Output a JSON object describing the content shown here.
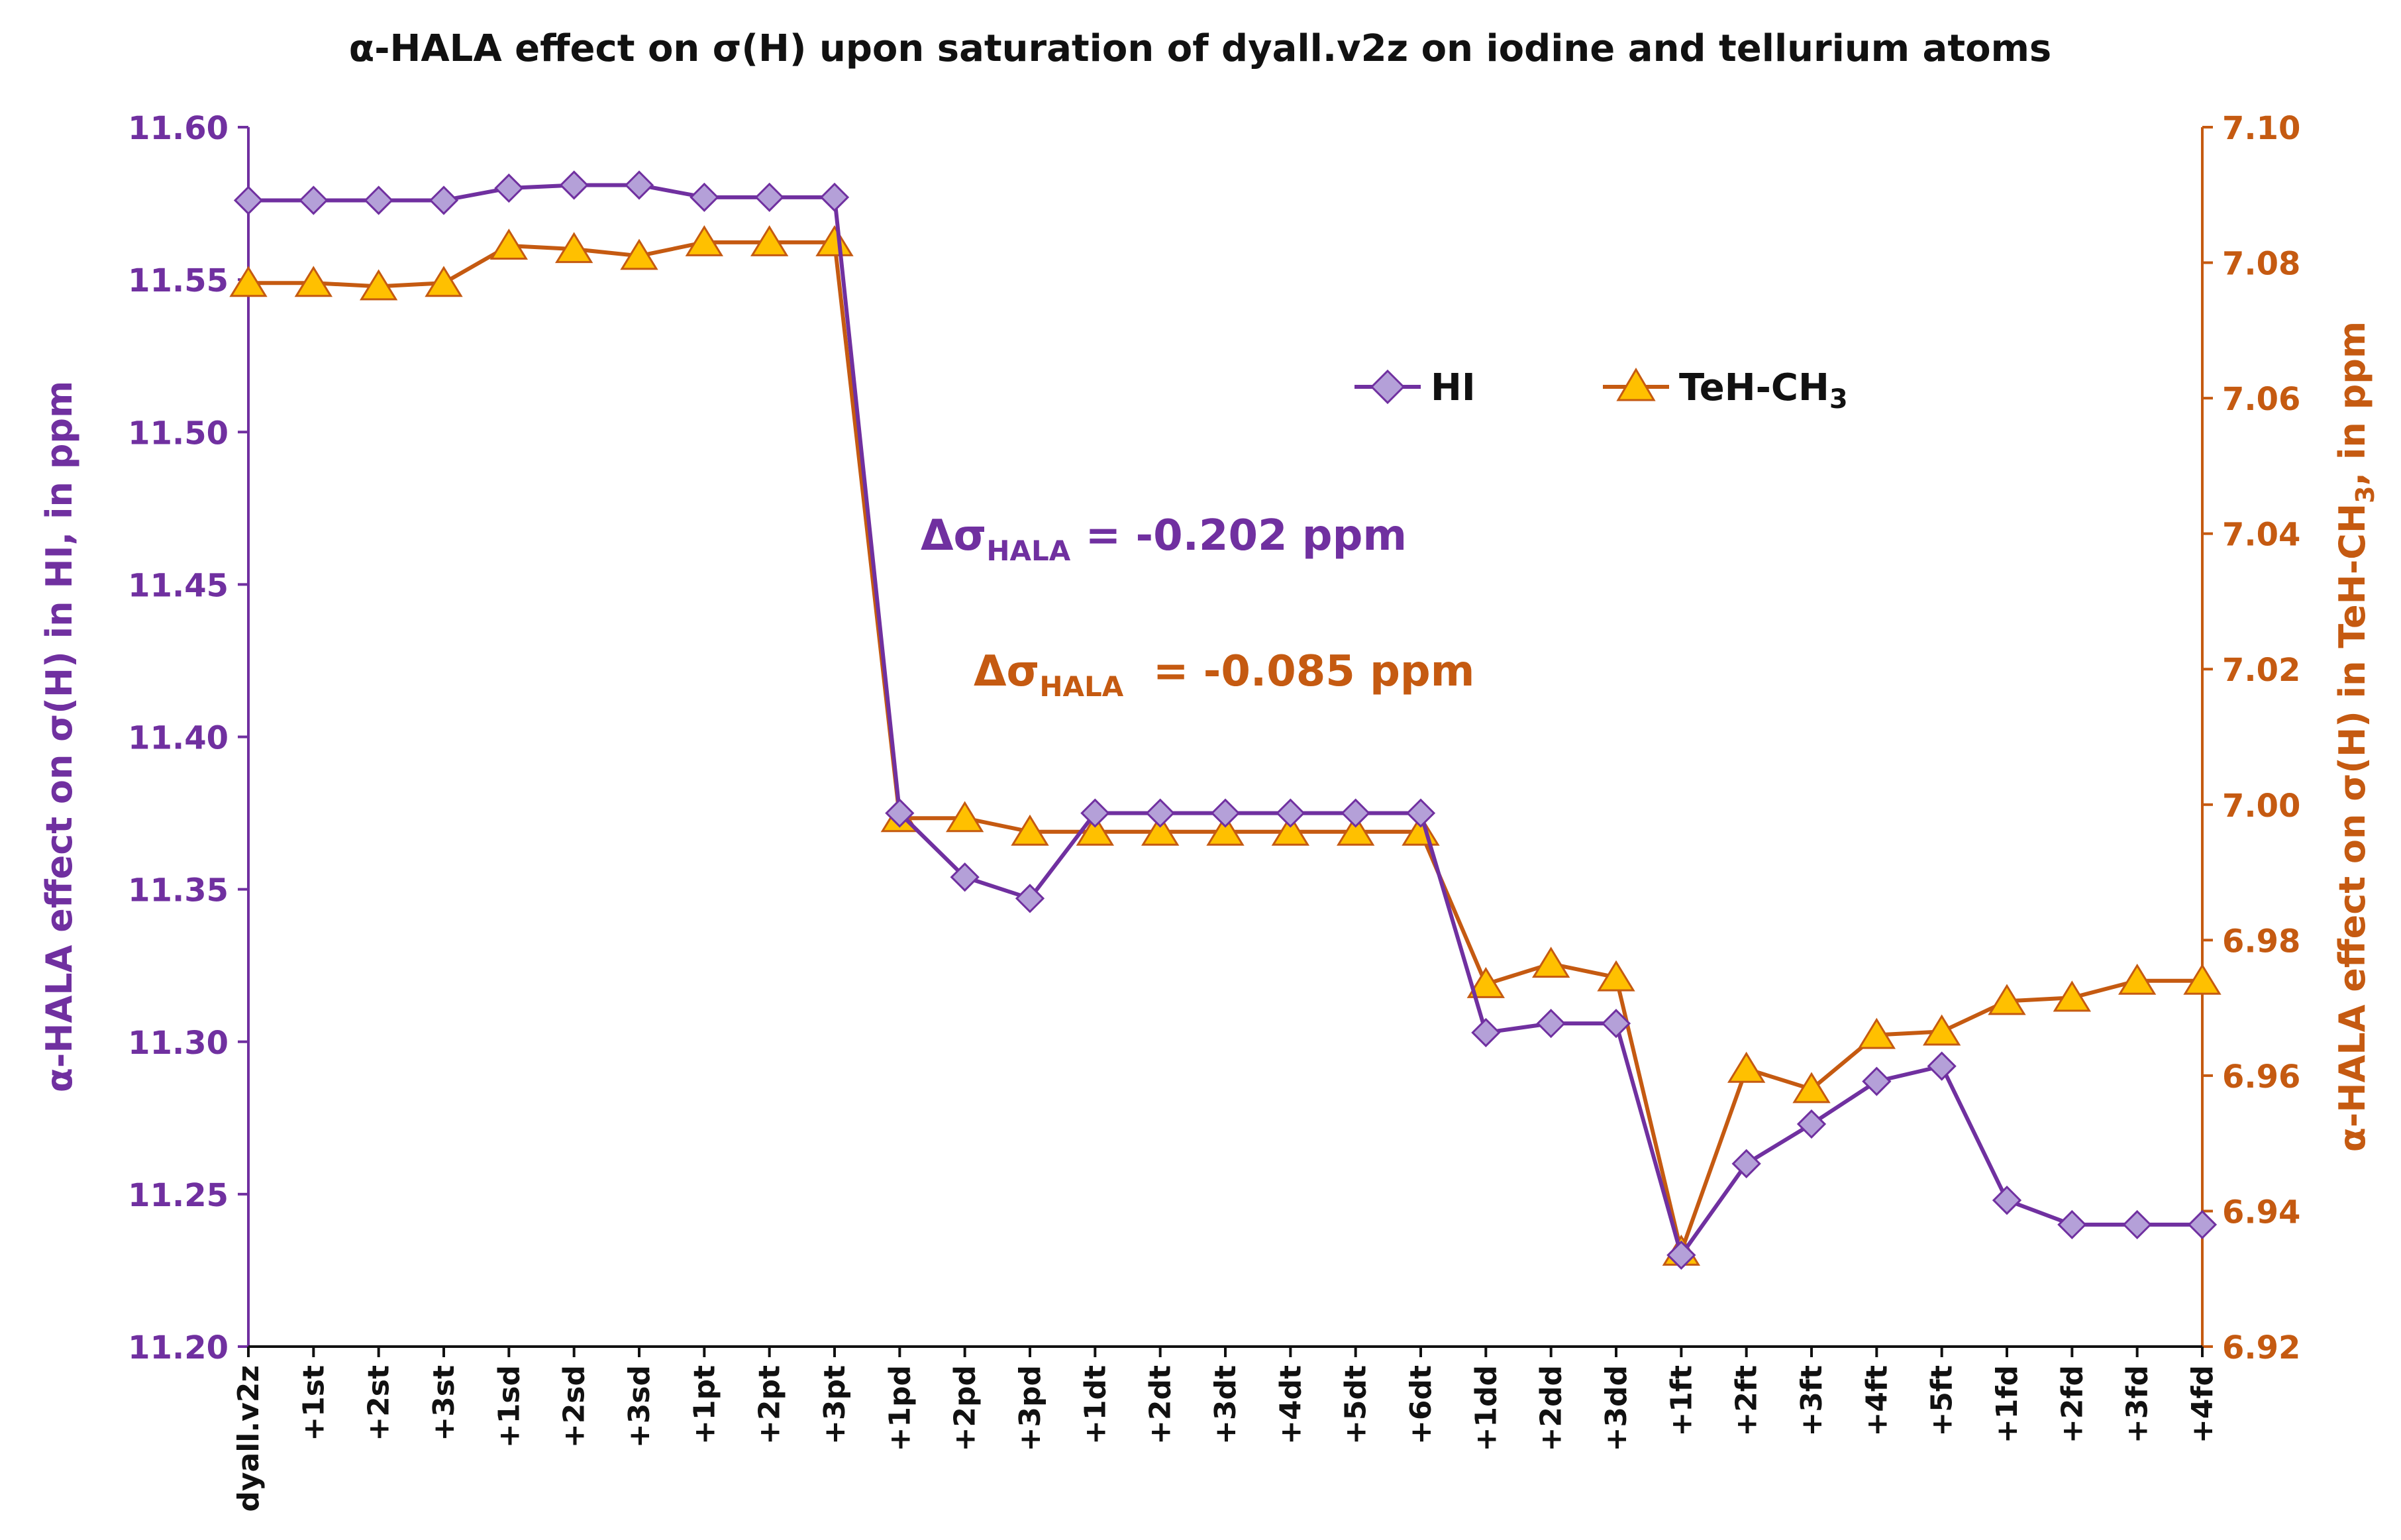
{
  "chart_data": {
    "type": "line",
    "title": "α-HALA effect on σ(H) upon saturation of dyall.v2z on iodine and tellurium atoms",
    "categories": [
      "dyall.v2z",
      "+1st",
      "+2st",
      "+3st",
      "+1sd",
      "+2sd",
      "+3sd",
      "+1pt",
      "+2pt",
      "+3pt",
      "+1pd",
      "+2pd",
      "+3pd",
      "+1dt",
      "+2dt",
      "+3dt",
      "+4dt",
      "+5dt",
      "+6dt",
      "+1dd",
      "+2dd",
      "+3dd",
      "+1ft",
      "+2ft",
      "+3ft",
      "+4ft",
      "+5ft",
      "+1fd",
      "+2fd",
      "+3fd",
      "+4fd"
    ],
    "y_left": {
      "label_pre": "α-HALA effect on σ(H) in HI, in ppm",
      "ylim": [
        11.2,
        11.6
      ],
      "ticks": [
        "11.20",
        "11.25",
        "11.30",
        "11.35",
        "11.40",
        "11.45",
        "11.50",
        "11.55",
        "11.60"
      ]
    },
    "y_right": {
      "label_pre": "α-HALA effect on σ(H) in TeH-CH",
      "label_sub": "3",
      "label_post": ", in ppm",
      "ylim": [
        6.92,
        7.1
      ],
      "ticks": [
        "6.92",
        "6.94",
        "6.96",
        "6.98",
        "7.00",
        "7.02",
        "7.04",
        "7.06",
        "7.08",
        "7.10"
      ]
    },
    "series": [
      {
        "name": "HI",
        "axis": "left",
        "color": "#7030A0",
        "marker_fill": "#B4A0D8",
        "marker": "diamond",
        "values": [
          11.576,
          11.576,
          11.576,
          11.576,
          11.58,
          11.581,
          11.581,
          11.577,
          11.577,
          11.577,
          11.375,
          11.354,
          11.347,
          11.375,
          11.375,
          11.375,
          11.375,
          11.375,
          11.375,
          11.303,
          11.306,
          11.306,
          11.23,
          11.26,
          11.273,
          11.287,
          11.292,
          11.248,
          11.24,
          11.24,
          11.24
        ]
      },
      {
        "name_pre": "TeH-CH",
        "name_sub": "3",
        "axis": "right",
        "color": "#C55A11",
        "marker_fill": "#FFC000",
        "marker": "triangle",
        "values": [
          7.077,
          7.077,
          7.0765,
          7.077,
          7.0825,
          7.082,
          7.081,
          7.083,
          7.083,
          7.083,
          6.998,
          6.998,
          6.996,
          6.996,
          6.996,
          6.996,
          6.996,
          6.996,
          6.996,
          6.9735,
          6.9765,
          6.9745,
          6.934,
          6.961,
          6.958,
          6.966,
          6.9665,
          6.971,
          6.9715,
          6.974,
          6.974
        ]
      }
    ],
    "annotations": [
      {
        "pre": "Δσ",
        "sub": "HALA",
        "post": " = -0.202 ppm",
        "color": "#7030A0"
      },
      {
        "pre": "Δσ",
        "sub": "HALA",
        "post": "  = -0.085 ppm",
        "color": "#C55A11"
      }
    ],
    "legend_position": "top-right (inside plot)"
  }
}
